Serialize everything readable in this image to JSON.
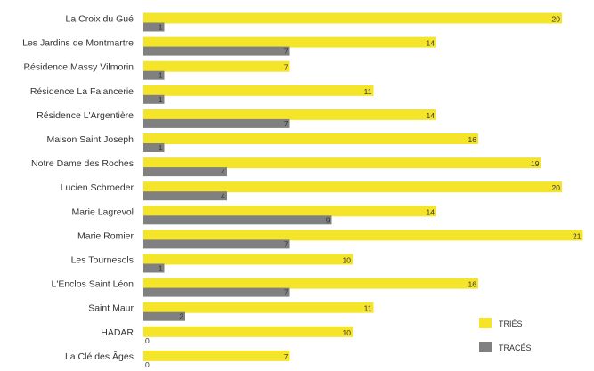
{
  "chart_data": {
    "type": "bar",
    "orientation": "horizontal",
    "categories": [
      "La Croix du Gué",
      "Les Jardins de Montmartre",
      "Résidence Massy Vilmorin",
      "Résidence La Faiancerie",
      "Résidence L'Argentière",
      "Maison Saint Joseph",
      "Notre Dame des Roches",
      "Lucien Schroeder",
      "Marie Lagrevol",
      "Marie Romier",
      "Les Tournesols",
      "L'Enclos Saint Léon",
      "Saint Maur",
      "HADAR",
      "La Clé des Âges"
    ],
    "series": [
      {
        "name": "TRIÉS",
        "color": "#f5e52a",
        "values": [
          20,
          14,
          7,
          11,
          14,
          16,
          19,
          20,
          14,
          21,
          10,
          16,
          11,
          10,
          7
        ]
      },
      {
        "name": "TRACÉS",
        "color": "#808080",
        "values": [
          1,
          7,
          1,
          1,
          7,
          1,
          4,
          4,
          9,
          7,
          1,
          7,
          2,
          0,
          0
        ]
      }
    ],
    "xlim": [
      0,
      21
    ],
    "grid": false,
    "legend_position": "bottom-right"
  }
}
